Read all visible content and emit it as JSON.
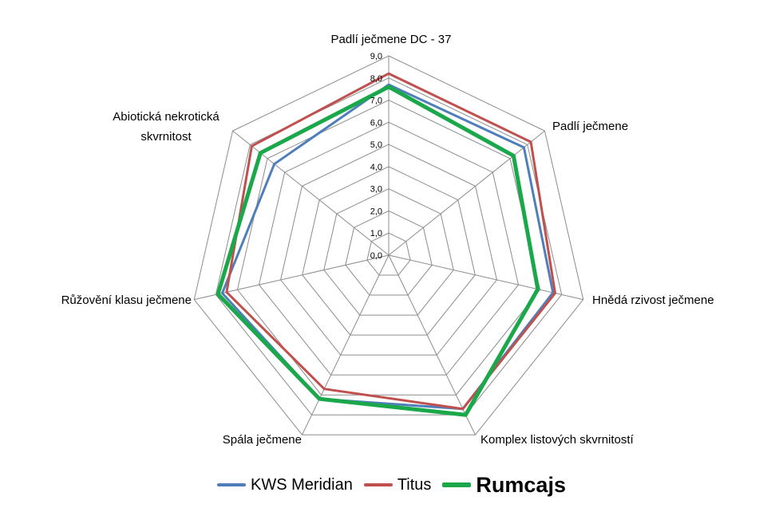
{
  "chart_data": {
    "type": "radar",
    "axes": [
      "Padlí ječmene DC - 37",
      "Padlí ječmene",
      "Hnědá rzivost ječmene",
      "Komplex listových skvrnitostí",
      "Spála ječmene",
      "Růžovění klasu ječmene",
      "Abiotická nekrotická skvrnitost"
    ],
    "axis_label_lines": [
      [
        "Padlí ječmene DC - 37"
      ],
      [
        "Padlí ječmene"
      ],
      [
        "Hnědá rzivost ječmene"
      ],
      [
        "Komplex listových skvrnitostí"
      ],
      [
        "Spála ječmene"
      ],
      [
        "Růžovění klasu ječmene"
      ],
      [
        "Abiotická nekrotická",
        "skvrnitost"
      ]
    ],
    "ticks": [
      "0,0",
      "1,0",
      "2,0",
      "3,0",
      "4,0",
      "5,0",
      "6,0",
      "7,0",
      "8,0",
      "9,0"
    ],
    "range": [
      0,
      9
    ],
    "grid": true,
    "legend_position": "bottom",
    "series": [
      {
        "name": "KWS Meridian",
        "color": "#4f7fba",
        "values": [
          7.7,
          7.8,
          7.6,
          7.7,
          7.2,
          7.7,
          6.6
        ]
      },
      {
        "name": "Titus",
        "color": "#c0504d",
        "values": [
          8.2,
          8.2,
          7.7,
          7.7,
          6.7,
          7.5,
          7.9
        ]
      },
      {
        "name": "Rumcajs",
        "color": "#1aa84a",
        "values": [
          7.6,
          7.2,
          6.9,
          8.0,
          7.2,
          7.9,
          7.4
        ]
      }
    ]
  }
}
